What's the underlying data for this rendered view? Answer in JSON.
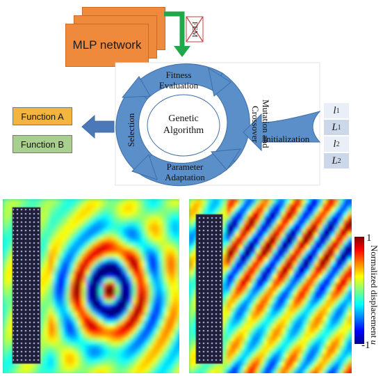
{
  "top": {
    "mlp_label": "MLP network",
    "fem_label": "FEM",
    "ga_center_line1": "Genetic",
    "ga_center_line2": "Algorithm",
    "fitness_line1": "Fitness",
    "fitness_line2": "Evaluation",
    "mutation_line1": "Mutation and",
    "mutation_line2": "Crossover",
    "parameter_line1": "Parameter",
    "parameter_line2": "Adaptation",
    "selection_label": "Selection",
    "initialization_label": "Initialization",
    "function_a": "Function A",
    "function_b": "Function B",
    "params": [
      {
        "base": "l",
        "sub": "1"
      },
      {
        "base": "L",
        "sub": "1"
      },
      {
        "base": "l",
        "sub": "2"
      },
      {
        "base": "L",
        "sub": "2"
      }
    ]
  },
  "colorbar": {
    "max_label": "1",
    "min_label": "-1",
    "title": "Normalized displacement",
    "title_var": "u"
  },
  "colors": {
    "mlp_orange": "#ef8a3c",
    "ga_blue": "#5b8fc9",
    "function_a": "#f3b53f",
    "function_b": "#a9cf8e",
    "param_light": "#e9eef7",
    "param_dark": "#cdd7ea",
    "arrow_green": "#21a84a"
  }
}
